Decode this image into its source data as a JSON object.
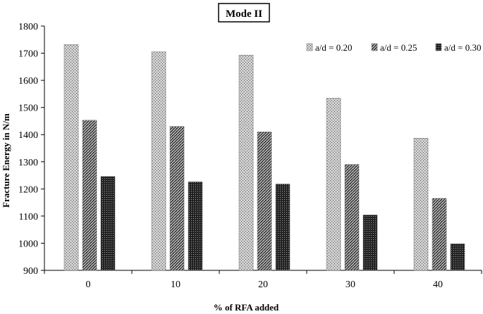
{
  "chart_data": {
    "type": "bar",
    "title": "Mode II",
    "xlabel": "% of RFA added",
    "ylabel": "Fracture Energy in N/m",
    "categories": [
      "0",
      "10",
      "20",
      "30",
      "40"
    ],
    "ylim": [
      900,
      1800
    ],
    "yticks": [
      900,
      1000,
      1100,
      1200,
      1300,
      1400,
      1500,
      1600,
      1700,
      1800
    ],
    "grid": false,
    "legend_position": "top-right",
    "series": [
      {
        "name": "a/d = 0.20",
        "values": [
          1732,
          1705,
          1693,
          1534,
          1387
        ],
        "pattern": "light-hatch"
      },
      {
        "name": "a/d = 0.25",
        "values": [
          1453,
          1430,
          1410,
          1290,
          1165
        ],
        "pattern": "cross-hatch"
      },
      {
        "name": "a/d = 0.30",
        "values": [
          1246,
          1226,
          1218,
          1104,
          998
        ],
        "pattern": "dark-hatch"
      }
    ]
  }
}
